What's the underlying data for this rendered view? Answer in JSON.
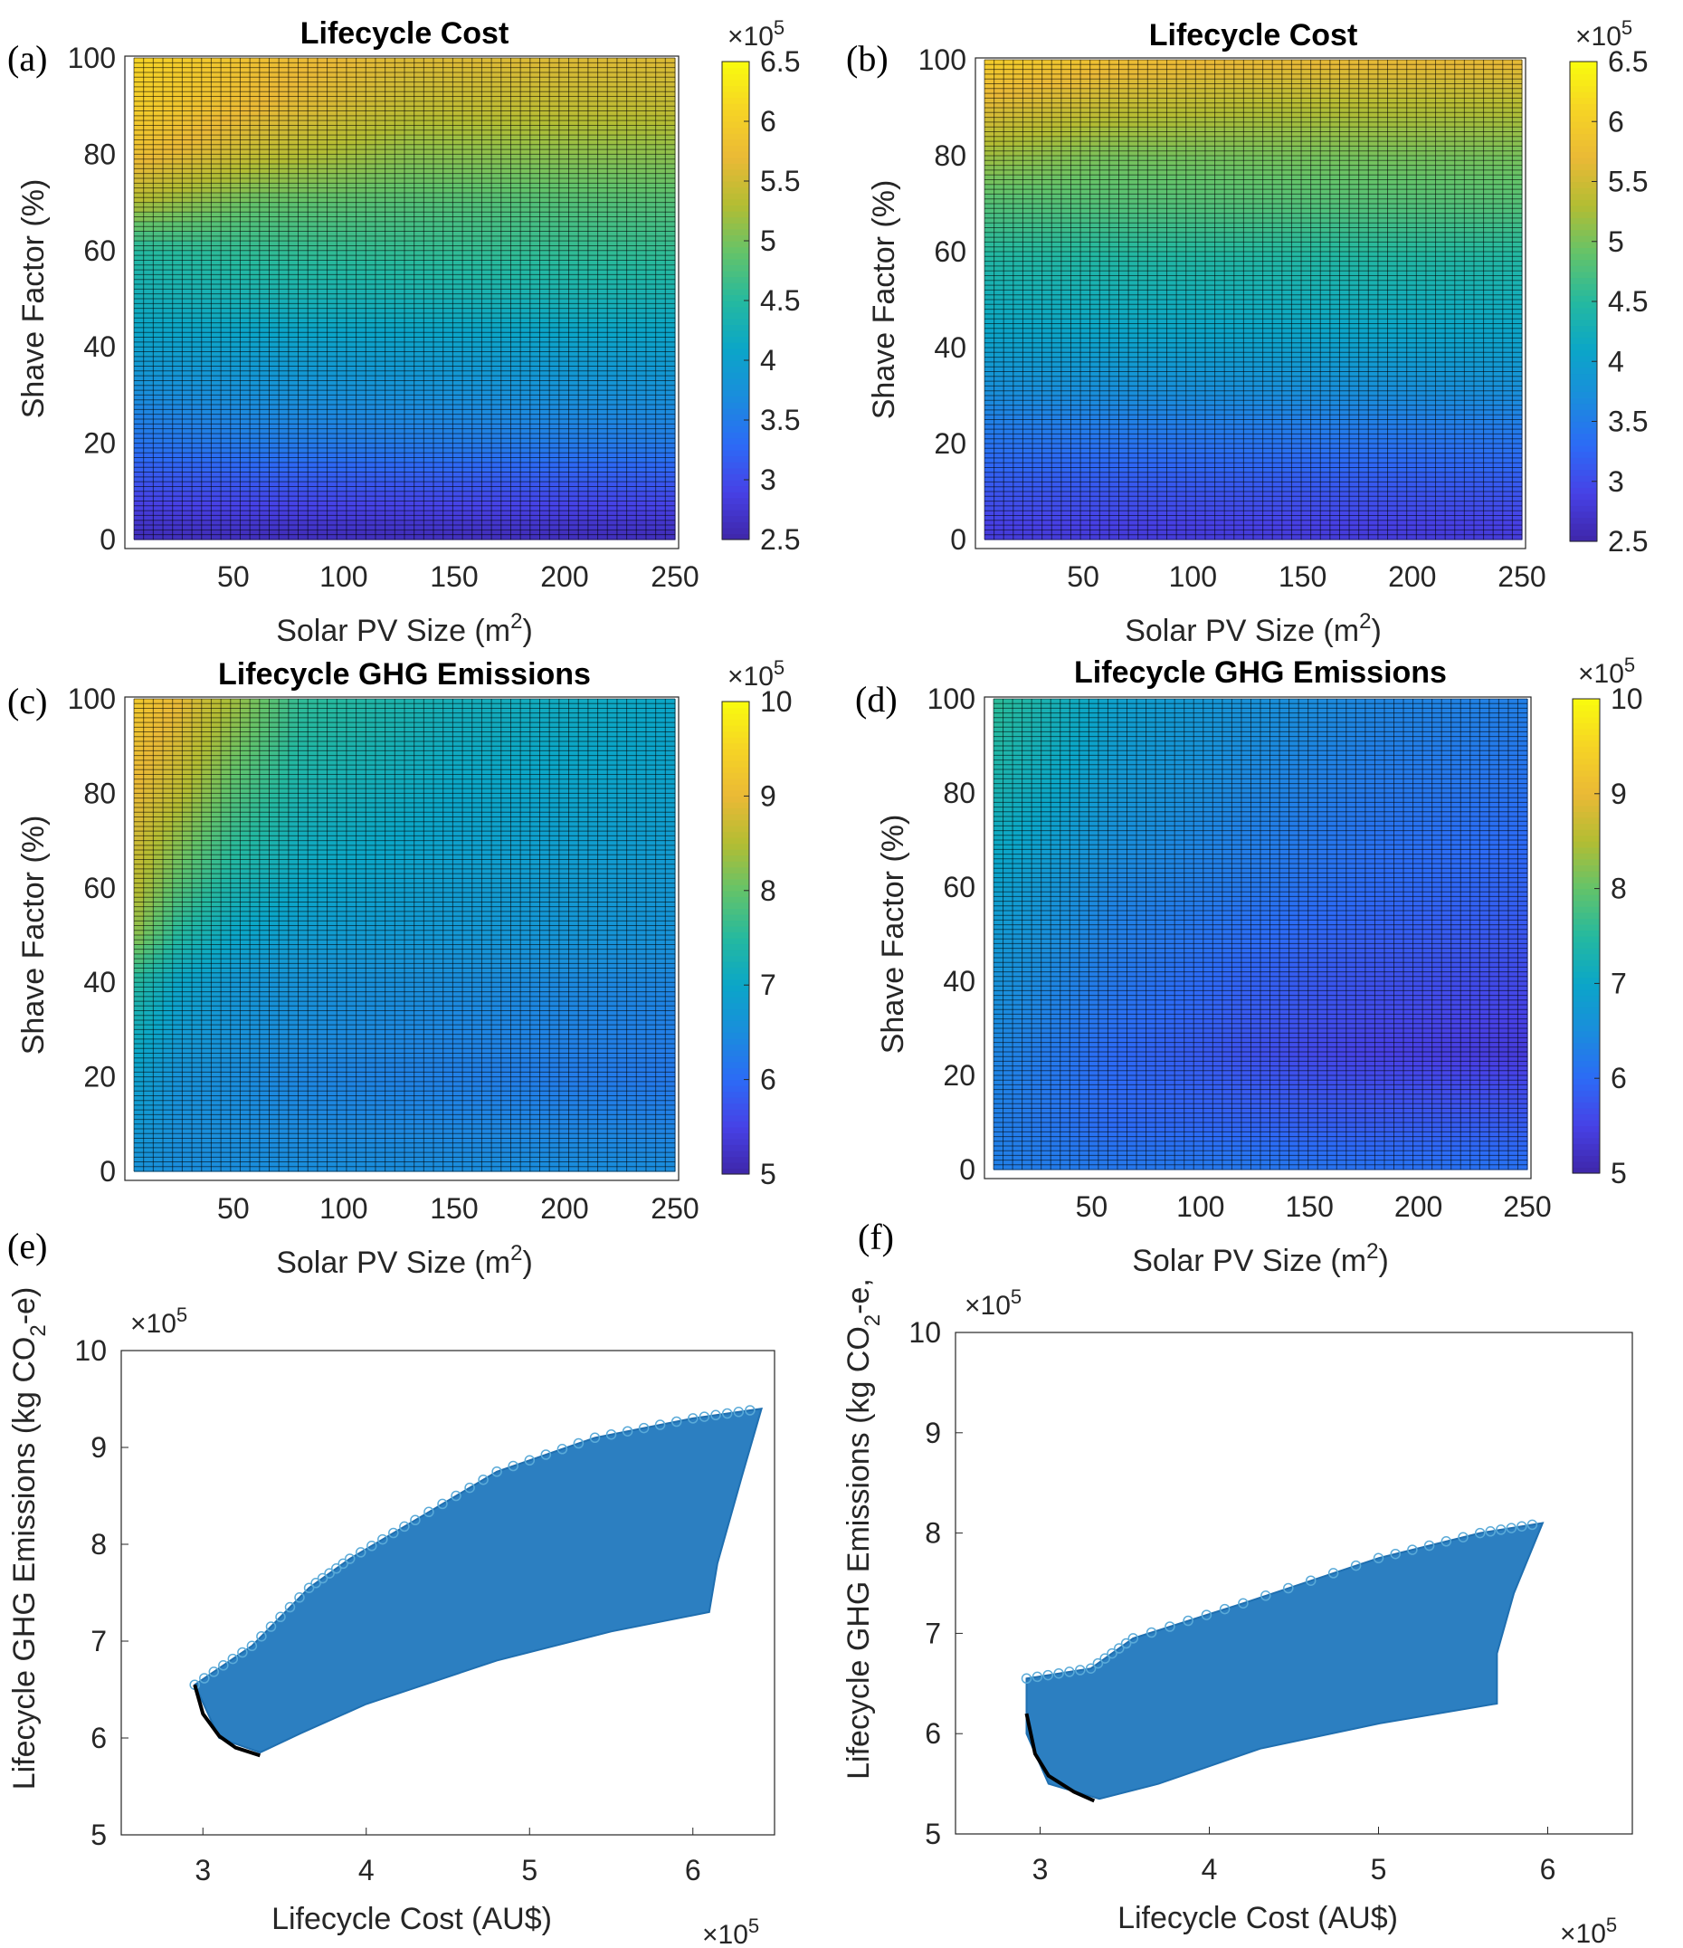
{
  "figure": {
    "colormap": [
      "#3e26a8",
      "#4741e6",
      "#2c6bf6",
      "#1a8ddc",
      "#0ba6c8",
      "#25b99f",
      "#63c36a",
      "#b3bd33",
      "#eab936",
      "#f6d425",
      "#f9fb0e"
    ],
    "scatter_color": "#2c7fc1",
    "front_color": "#000000"
  },
  "chart_data": [
    {
      "id": "a",
      "panel_label": "(a)",
      "type": "heatmap",
      "title": "Lifecycle Cost",
      "xlabel": "Solar PV Size (m",
      "xlabel_sup": "2",
      "xlabel_end": ")",
      "ylabel": "Shave Factor (%)",
      "xlim": [
        5,
        250
      ],
      "ylim": [
        0,
        100
      ],
      "xticks": [
        50,
        100,
        150,
        200,
        250
      ],
      "yticks": [
        0,
        20,
        40,
        60,
        80,
        100
      ],
      "xtick_labels": [
        "50",
        "100",
        "150",
        "200",
        "250"
      ],
      "ytick_labels": [
        "0",
        "20",
        "40",
        "60",
        "80",
        "100"
      ],
      "colorbar": {
        "min": 2.5,
        "max": 6.5,
        "ticks": [
          "2.5",
          "3",
          "3.5",
          "4",
          "4.5",
          "5",
          "5.5",
          "6",
          "6.5"
        ],
        "multiplier": "×10",
        "exponent": "5"
      },
      "grid_lines": true,
      "grid": {
        "x": [
          5,
          62,
          130,
          250
        ],
        "y": [
          0,
          20,
          40,
          60,
          70,
          80,
          90,
          100
        ],
        "z": [
          [
            2.6,
            2.6,
            2.6,
            2.6
          ],
          [
            3.4,
            3.5,
            3.5,
            3.5
          ],
          [
            4.0,
            4.0,
            4.0,
            4.0
          ],
          [
            4.5,
            4.6,
            4.6,
            4.6
          ],
          [
            5.3,
            4.9,
            4.8,
            4.8
          ],
          [
            5.8,
            5.4,
            5.1,
            5.1
          ],
          [
            6.0,
            5.7,
            5.4,
            5.4
          ],
          [
            6.1,
            5.8,
            5.6,
            5.6
          ]
        ]
      }
    },
    {
      "id": "b",
      "panel_label": "(b)",
      "type": "heatmap",
      "title": "Lifecycle Cost",
      "xlabel": "Solar PV Size (m",
      "xlabel_sup": "2",
      "xlabel_end": ")",
      "ylabel": "Shave Factor (%)",
      "xlim": [
        5,
        250
      ],
      "ylim": [
        0,
        100
      ],
      "xticks": [
        50,
        100,
        150,
        200,
        250
      ],
      "yticks": [
        0,
        20,
        40,
        60,
        80,
        100
      ],
      "xtick_labels": [
        "50",
        "100",
        "150",
        "200",
        "250"
      ],
      "ytick_labels": [
        "0",
        "20",
        "40",
        "60",
        "80",
        "100"
      ],
      "colorbar": {
        "min": 2.5,
        "max": 6.5,
        "ticks": [
          "2.5",
          "3",
          "3.5",
          "4",
          "4.5",
          "5",
          "5.5",
          "6",
          "6.5"
        ],
        "multiplier": "×10",
        "exponent": "5"
      },
      "grid_lines": true,
      "grid": {
        "x": [
          5,
          62,
          130,
          250
        ],
        "y": [
          0,
          20,
          40,
          60,
          70,
          80,
          90,
          100
        ],
        "z": [
          [
            2.8,
            2.8,
            2.8,
            2.8
          ],
          [
            3.4,
            3.4,
            3.4,
            3.4
          ],
          [
            4.0,
            4.0,
            4.0,
            4.0
          ],
          [
            4.5,
            4.5,
            4.5,
            4.5
          ],
          [
            4.8,
            4.8,
            4.8,
            4.8
          ],
          [
            5.2,
            5.0,
            5.0,
            5.0
          ],
          [
            5.6,
            5.4,
            5.3,
            5.3
          ],
          [
            6.0,
            5.8,
            5.7,
            5.7
          ]
        ]
      }
    },
    {
      "id": "c",
      "panel_label": "(c)",
      "type": "heatmap",
      "title": "Lifecycle GHG Emissions",
      "xlabel": "Solar PV Size (m",
      "xlabel_sup": "2",
      "xlabel_end": ")",
      "ylabel": "Shave Factor (%)",
      "xlim": [
        5,
        250
      ],
      "ylim": [
        0,
        100
      ],
      "xticks": [
        50,
        100,
        150,
        200,
        250
      ],
      "yticks": [
        0,
        20,
        40,
        60,
        80,
        100
      ],
      "xtick_labels": [
        "50",
        "100",
        "150",
        "200",
        "250"
      ],
      "ytick_labels": [
        "0",
        "20",
        "40",
        "60",
        "80",
        "100"
      ],
      "colorbar": {
        "min": 5,
        "max": 10,
        "ticks": [
          "5",
          "6",
          "7",
          "8",
          "9",
          "10"
        ],
        "multiplier": "×10",
        "exponent": "5"
      },
      "grid_lines": true,
      "grid": {
        "x": [
          5,
          25,
          50,
          80,
          150,
          250
        ],
        "y": [
          0,
          20,
          40,
          50,
          60,
          80,
          100
        ],
        "z": [
          [
            6.6,
            6.5,
            6.5,
            6.5,
            6.5,
            6.5
          ],
          [
            6.9,
            6.6,
            6.5,
            6.4,
            6.3,
            6.2
          ],
          [
            7.5,
            7.0,
            6.7,
            6.6,
            6.5,
            6.4
          ],
          [
            8.3,
            7.5,
            7.0,
            6.8,
            6.7,
            6.6
          ],
          [
            8.6,
            7.9,
            7.3,
            7.0,
            6.8,
            6.7
          ],
          [
            9.0,
            8.6,
            7.9,
            7.3,
            7.0,
            6.9
          ],
          [
            9.3,
            9.0,
            8.4,
            7.6,
            7.2,
            7.0
          ]
        ]
      }
    },
    {
      "id": "d",
      "panel_label": "(d)",
      "type": "heatmap",
      "title": "Lifecycle GHG Emissions",
      "xlabel": "Solar PV Size (m",
      "xlabel_sup": "2",
      "xlabel_end": ")",
      "ylabel": "Shave Factor (%)",
      "xlim": [
        5,
        250
      ],
      "ylim": [
        0,
        100
      ],
      "xticks": [
        50,
        100,
        150,
        200,
        250
      ],
      "yticks": [
        0,
        20,
        40,
        60,
        80,
        100
      ],
      "xtick_labels": [
        "50",
        "100",
        "150",
        "200",
        "250"
      ],
      "ytick_labels": [
        "0",
        "20",
        "40",
        "60",
        "80",
        "100"
      ],
      "colorbar": {
        "min": 5,
        "max": 10,
        "ticks": [
          "5",
          "6",
          "7",
          "8",
          "9",
          "10"
        ],
        "multiplier": "×10",
        "exponent": "5"
      },
      "grid_lines": true,
      "grid": {
        "x": [
          5,
          60,
          120,
          180,
          250
        ],
        "y": [
          0,
          10,
          25,
          40,
          60,
          80,
          100
        ],
        "z": [
          [
            6.3,
            6.2,
            6.2,
            6.1,
            6.1
          ],
          [
            6.3,
            6.0,
            5.9,
            5.8,
            5.8
          ],
          [
            6.4,
            6.0,
            5.7,
            5.5,
            5.4
          ],
          [
            6.6,
            6.2,
            5.9,
            5.7,
            5.6
          ],
          [
            6.9,
            6.4,
            6.2,
            6.0,
            5.9
          ],
          [
            7.3,
            6.7,
            6.4,
            6.2,
            6.1
          ],
          [
            7.6,
            6.9,
            6.6,
            6.4,
            6.3
          ]
        ]
      }
    },
    {
      "id": "e",
      "panel_label": "(e)",
      "type": "scatter",
      "xlabel": "Lifecycle Cost (AU$)",
      "ylabel": "Lifecycle GHG Emissions (kg CO",
      "ylabel_sub": "2",
      "ylabel_end": "-e)",
      "xlim": [
        2.5,
        6.5
      ],
      "ylim": [
        5,
        10
      ],
      "xticks": [
        3,
        4,
        5,
        6
      ],
      "yticks": [
        5,
        6,
        7,
        8,
        9,
        10
      ],
      "xtick_labels": [
        "3",
        "4",
        "5",
        "6"
      ],
      "ytick_labels": [
        "5",
        "6",
        "7",
        "8",
        "9",
        "10"
      ],
      "x_multiplier": "×10",
      "x_exponent": "5",
      "y_multiplier": "×10",
      "y_exponent": "5",
      "cloud": {
        "upper": [
          [
            2.95,
            6.55
          ],
          [
            3.3,
            6.95
          ],
          [
            3.65,
            7.55
          ],
          [
            3.9,
            7.85
          ],
          [
            4.3,
            8.25
          ],
          [
            4.8,
            8.75
          ],
          [
            5.4,
            9.1
          ],
          [
            6.0,
            9.3
          ],
          [
            6.42,
            9.4
          ]
        ],
        "lower": [
          [
            6.42,
            9.4
          ],
          [
            6.3,
            8.7
          ],
          [
            6.15,
            7.8
          ],
          [
            6.1,
            7.3
          ],
          [
            5.5,
            7.1
          ],
          [
            4.8,
            6.8
          ],
          [
            4.0,
            6.35
          ],
          [
            3.6,
            6.05
          ],
          [
            3.35,
            5.85
          ],
          [
            3.1,
            6.0
          ],
          [
            2.95,
            6.55
          ]
        ]
      },
      "pareto_front": [
        [
          2.95,
          6.55
        ],
        [
          3.0,
          6.25
        ],
        [
          3.1,
          6.02
        ],
        [
          3.2,
          5.9
        ],
        [
          3.35,
          5.82
        ]
      ]
    },
    {
      "id": "f",
      "panel_label": "(f)",
      "type": "scatter",
      "xlabel": "Lifecycle Cost (AU$)",
      "ylabel": "Lifecycle GHG Emissions (kg CO",
      "ylabel_sub": "2",
      "ylabel_end": "-e,",
      "xlim": [
        2.5,
        6.5
      ],
      "ylim": [
        5,
        10
      ],
      "xticks": [
        3,
        4,
        5,
        6
      ],
      "yticks": [
        5,
        6,
        7,
        8,
        9,
        10
      ],
      "xtick_labels": [
        "3",
        "4",
        "5",
        "6"
      ],
      "ytick_labels": [
        "5",
        "6",
        "7",
        "8",
        "9",
        "10"
      ],
      "x_multiplier": "×10",
      "x_exponent": "5",
      "y_multiplier": "×10",
      "y_exponent": "5",
      "cloud": {
        "upper": [
          [
            2.92,
            6.55
          ],
          [
            3.3,
            6.65
          ],
          [
            3.55,
            6.95
          ],
          [
            4.2,
            7.3
          ],
          [
            5.0,
            7.75
          ],
          [
            5.6,
            8.0
          ],
          [
            5.97,
            8.1
          ]
        ],
        "lower": [
          [
            5.97,
            8.1
          ],
          [
            5.8,
            7.4
          ],
          [
            5.7,
            6.8
          ],
          [
            5.7,
            6.3
          ],
          [
            5.0,
            6.1
          ],
          [
            4.3,
            5.85
          ],
          [
            3.7,
            5.5
          ],
          [
            3.35,
            5.35
          ],
          [
            3.05,
            5.5
          ],
          [
            2.92,
            6.0
          ],
          [
            2.92,
            6.55
          ]
        ]
      },
      "pareto_front": [
        [
          2.92,
          6.2
        ],
        [
          2.97,
          5.8
        ],
        [
          3.05,
          5.58
        ],
        [
          3.2,
          5.42
        ],
        [
          3.32,
          5.33
        ]
      ]
    }
  ]
}
